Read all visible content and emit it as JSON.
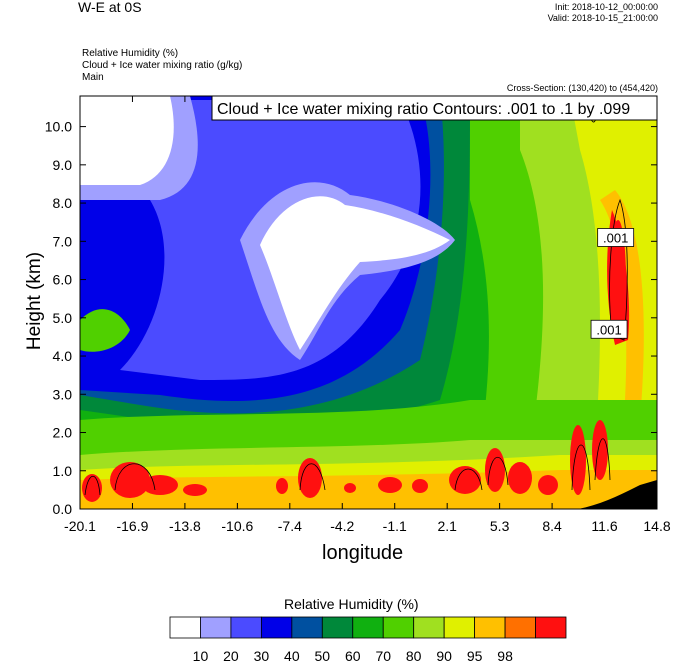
{
  "header": {
    "title": "W-E at 0S",
    "init": "Init: 2018-10-12_00:00:00",
    "valid": "Valid: 2018-10-15_21:00:00",
    "field1": "Relative Humidity   (%)",
    "field2": "Cloud + Ice water mixing ratio   (g/kg)",
    "field3": "Main",
    "cross_section": "Cross-Section: (130,420) to (454,420)"
  },
  "chart_data": {
    "type": "heatmap",
    "contour_label": "Cloud + Ice water mixing ratio Contours: .001 to .1 by .099",
    "xlabel": "longitude",
    "ylabel": "Height (km)",
    "xlim": [
      -20.1,
      14.8
    ],
    "ylim": [
      0.0,
      10.8
    ],
    "xticks": [
      "-20.1",
      "-16.9",
      "-13.8",
      "-10.6",
      "-7.4",
      "-4.2",
      "-1.1",
      "2.1",
      "5.3",
      "8.4",
      "11.6",
      "14.8"
    ],
    "yticks": [
      "0.0",
      "1.0",
      "2.0",
      "3.0",
      "4.0",
      "5.0",
      "6.0",
      "7.0",
      "8.0",
      "9.0",
      "10.0"
    ],
    "contour_labels": [
      {
        "text": ".001",
        "x": 12.3,
        "y": 7.1
      },
      {
        "text": ".001",
        "x": 11.9,
        "y": 4.7
      }
    ],
    "colorbar": {
      "title": "Relative Humidity  (%)",
      "levels": [
        "10",
        "20",
        "30",
        "40",
        "50",
        "60",
        "70",
        "80",
        "90",
        "95",
        "98"
      ],
      "colors": [
        "#ffffff",
        "#a0a0ff",
        "#4b4bff",
        "#0000e8",
        "#0050a0",
        "#00883a",
        "#10b010",
        "#50d000",
        "#a0e020",
        "#e0f000",
        "#ffc000",
        "#ff7000",
        "#ff1010"
      ]
    }
  }
}
